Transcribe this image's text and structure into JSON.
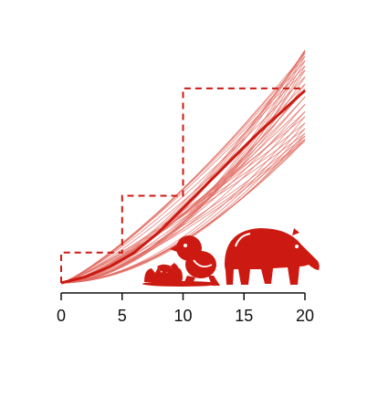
{
  "chart_data": {
    "type": "line",
    "title": "",
    "xlabel": "",
    "ylabel": "",
    "xlim": [
      0,
      20
    ],
    "ylim": [
      0,
      1
    ],
    "x_ticks": [
      0,
      5,
      10,
      15,
      20
    ],
    "x_tick_labels": [
      "0",
      "5",
      "10",
      "15",
      "20"
    ],
    "y_axis_visible": false,
    "grid": false,
    "legend": "none",
    "colors": {
      "accent": "#cc1a12",
      "ensemble": "#e06a60",
      "step": "#cc1a12"
    },
    "series": [
      {
        "kind": "mean",
        "x": [
          0,
          2,
          4,
          6,
          8,
          10,
          12,
          14,
          16,
          18,
          20
        ],
        "values": [
          0,
          0.03,
          0.08,
          0.15,
          0.25,
          0.37,
          0.49,
          0.61,
          0.73,
          0.84,
          0.95
        ]
      },
      {
        "kind": "step",
        "style": "dashed",
        "x": [
          0,
          0,
          5,
          5,
          10,
          10,
          20
        ],
        "values": [
          0,
          0.15,
          0.15,
          0.43,
          0.43,
          0.96,
          0.96
        ]
      }
    ],
    "ensemble": {
      "count": 40,
      "shape": "power",
      "endpoint_range": [
        0.7,
        1.15
      ]
    },
    "icons": [
      "hatching-chick-icon",
      "chick-icon",
      "tapir-icon"
    ]
  }
}
